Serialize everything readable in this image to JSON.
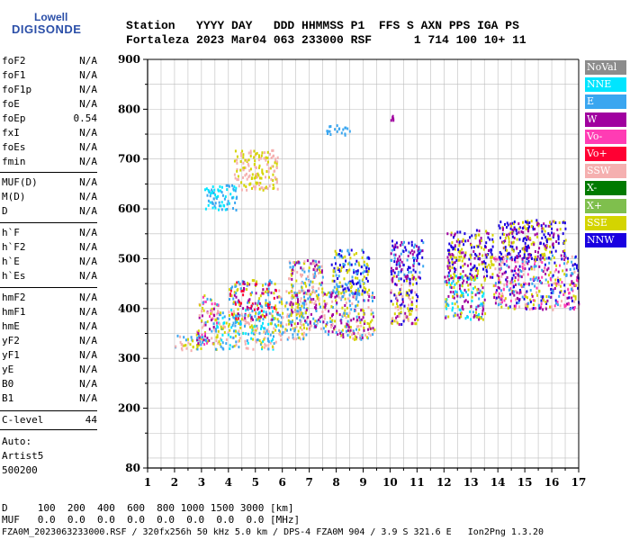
{
  "logo": {
    "line1": "Lowell",
    "line2": "DIGISONDE"
  },
  "header": {
    "labels": "Station   YYYY DAY   DDD HHMMSS P1  FFS S AXN PPS IGA PS",
    "values": "Fortaleza 2023 Mar04 063 233000 RSF      1 714 100 10+ 11"
  },
  "params_group1": [
    {
      "name": "foF2",
      "value": "N/A"
    },
    {
      "name": "foF1",
      "value": "N/A"
    },
    {
      "name": "foF1p",
      "value": "N/A"
    },
    {
      "name": "foE",
      "value": "N/A"
    },
    {
      "name": "foEp",
      "value": "0.54"
    },
    {
      "name": "fxI",
      "value": "N/A"
    },
    {
      "name": "foEs",
      "value": "N/A"
    },
    {
      "name": "fmin",
      "value": "N/A"
    }
  ],
  "params_group2": [
    {
      "name": "MUF(D)",
      "value": "N/A"
    },
    {
      "name": "M(D)",
      "value": "N/A"
    },
    {
      "name": "D",
      "value": "N/A"
    }
  ],
  "params_group3": [
    {
      "name": "h`F",
      "value": "N/A"
    },
    {
      "name": "h`F2",
      "value": "N/A"
    },
    {
      "name": "h`E",
      "value": "N/A"
    },
    {
      "name": "h`Es",
      "value": "N/A"
    }
  ],
  "params_group4": [
    {
      "name": "hmF2",
      "value": "N/A"
    },
    {
      "name": "hmF1",
      "value": "N/A"
    },
    {
      "name": "hmE",
      "value": "N/A"
    },
    {
      "name": "yF2",
      "value": "N/A"
    },
    {
      "name": "yF1",
      "value": "N/A"
    },
    {
      "name": "yE",
      "value": "N/A"
    },
    {
      "name": "B0",
      "value": "N/A"
    },
    {
      "name": "B1",
      "value": "N/A"
    }
  ],
  "c_level": {
    "name": "C-level",
    "value": "44"
  },
  "auto": {
    "line1": "Auto:",
    "line2": "Artist5",
    "line3": "500200"
  },
  "footer": {
    "d_row": "D     100  200  400  600  800 1000 1500 3000 [km]",
    "muf_row": "MUF   0.0  0.0  0.0  0.0  0.0  0.0  0.0  0.0 [MHz]",
    "info": "FZA0M_2023063233000.RSF / 320fx256h 50 kHz 5.0 km / DPS-4 FZA0M 904 / 3.9 S 321.6 E   Ion2Png 1.3.20"
  },
  "legend": [
    {
      "label": "NoVal",
      "color": "#8c8c8c"
    },
    {
      "label": "NNE",
      "color": "#00e5ff"
    },
    {
      "label": "E",
      "color": "#3aa6f0"
    },
    {
      "label": "W",
      "color": "#a0009f"
    },
    {
      "label": "Vo-",
      "color": "#ff3cb4"
    },
    {
      "label": "Vo+",
      "color": "#ff0033"
    },
    {
      "label": "SSW",
      "color": "#f5b0b0"
    },
    {
      "label": "X-",
      "color": "#007a00"
    },
    {
      "label": "X+",
      "color": "#7fbf4d"
    },
    {
      "label": "SSE",
      "color": "#d4d400"
    },
    {
      "label": "NNW",
      "color": "#1a00e0"
    }
  ],
  "chart_data": {
    "type": "scatter",
    "title": "",
    "xlabel": "",
    "ylabel": "",
    "xlim": [
      1,
      17
    ],
    "ylim": [
      80,
      900
    ],
    "x_ticks": [
      1,
      2,
      3,
      4,
      5,
      6,
      7,
      8,
      9,
      10,
      11,
      12,
      13,
      14,
      15,
      16,
      17
    ],
    "y_ticks": [
      80,
      200,
      300,
      400,
      500,
      600,
      700,
      800,
      900
    ],
    "grid": true,
    "series_note": "ionogram echo traces, polarization-coded",
    "clusters": [
      {
        "x": [
          2.0,
          3.0
        ],
        "y": [
          315,
          350
        ],
        "colors": [
          "#3aa6f0",
          "#d4d400",
          "#f5b0b0"
        ]
      },
      {
        "x": [
          2.8,
          3.6
        ],
        "y": [
          330,
          430
        ],
        "colors": [
          "#3aa6f0",
          "#d4d400",
          "#f5b0b0",
          "#ff3cb4",
          "#a0009f"
        ]
      },
      {
        "x": [
          3.5,
          5.8
        ],
        "y": [
          320,
          400
        ],
        "colors": [
          "#3aa6f0",
          "#d4d400",
          "#f5b0b0",
          "#00e5ff"
        ]
      },
      {
        "x": [
          4.0,
          5.8
        ],
        "y": [
          380,
          460
        ],
        "colors": [
          "#3aa6f0",
          "#d4d400",
          "#a0009f",
          "#ff0033"
        ]
      },
      {
        "x": [
          5.8,
          6.9
        ],
        "y": [
          340,
          440
        ],
        "colors": [
          "#3aa6f0",
          "#d4d400",
          "#f5b0b0"
        ]
      },
      {
        "x": [
          6.2,
          7.5
        ],
        "y": [
          360,
          500
        ],
        "colors": [
          "#3aa6f0",
          "#d4d400",
          "#a0009f",
          "#f5b0b0"
        ]
      },
      {
        "x": [
          7.5,
          9.4
        ],
        "y": [
          340,
          440
        ],
        "colors": [
          "#d4d400",
          "#f5b0b0",
          "#3aa6f0",
          "#a0009f"
        ]
      },
      {
        "x": [
          7.8,
          9.2
        ],
        "y": [
          430,
          520
        ],
        "colors": [
          "#3aa6f0",
          "#d4d400",
          "#1a00e0"
        ]
      },
      {
        "x": [
          10.0,
          11.0
        ],
        "y": [
          370,
          470
        ],
        "colors": [
          "#d4d400",
          "#a0009f",
          "#f5b0b0",
          "#1a00e0"
        ]
      },
      {
        "x": [
          10.0,
          11.2
        ],
        "y": [
          460,
          540
        ],
        "colors": [
          "#1a00e0",
          "#a0009f",
          "#3aa6f0"
        ]
      },
      {
        "x": [
          12.0,
          13.5
        ],
        "y": [
          380,
          470
        ],
        "colors": [
          "#3aa6f0",
          "#00e5ff",
          "#a0009f",
          "#d4d400"
        ]
      },
      {
        "x": [
          12.1,
          13.8
        ],
        "y": [
          460,
          560
        ],
        "colors": [
          "#1a00e0",
          "#a0009f",
          "#d4d400"
        ]
      },
      {
        "x": [
          13.8,
          17.0
        ],
        "y": [
          400,
          510
        ],
        "colors": [
          "#a0009f",
          "#ff3cb4",
          "#d4d400",
          "#f5b0b0",
          "#3aa6f0",
          "#1a00e0"
        ]
      },
      {
        "x": [
          14.0,
          16.5
        ],
        "y": [
          500,
          580
        ],
        "colors": [
          "#d4d400",
          "#1a00e0",
          "#a0009f"
        ]
      },
      {
        "x": [
          3.1,
          4.3
        ],
        "y": [
          600,
          650
        ],
        "colors": [
          "#3aa6f0",
          "#00e5ff"
        ]
      },
      {
        "x": [
          4.2,
          5.8
        ],
        "y": [
          640,
          720
        ],
        "colors": [
          "#d4d400",
          "#f5b0b0"
        ]
      },
      {
        "x": [
          7.6,
          8.5
        ],
        "y": [
          750,
          770
        ],
        "colors": [
          "#3aa6f0"
        ]
      },
      {
        "x": [
          10.0,
          10.1
        ],
        "y": [
          780,
          790
        ],
        "colors": [
          "#a0009f"
        ]
      }
    ]
  }
}
